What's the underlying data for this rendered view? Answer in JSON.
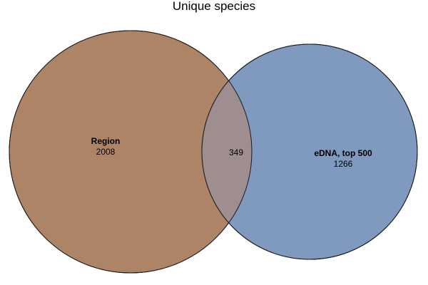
{
  "title": "Unique species",
  "colors": {
    "left_fill": "#ae8467",
    "right_fill": "#7f99bf",
    "overlap_fill": "#9f8e90",
    "stroke": "#1a1a1a"
  },
  "sets": {
    "left": {
      "label": "Region",
      "count": "2008"
    },
    "right": {
      "label": "eDNA, top 500",
      "count": "1266"
    }
  },
  "overlap": {
    "count": "349"
  }
}
